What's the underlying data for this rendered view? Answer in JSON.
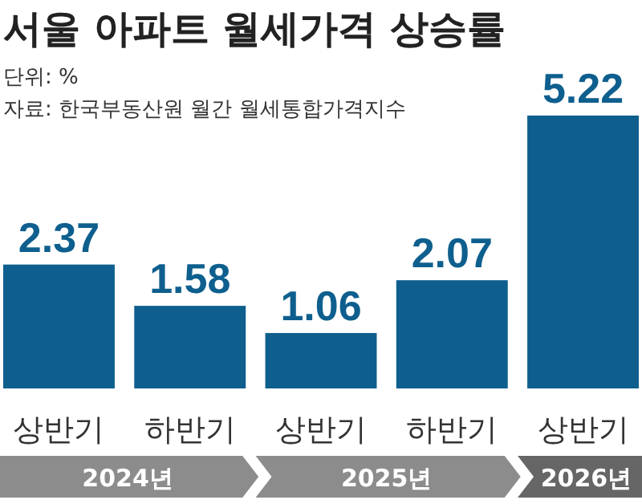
{
  "chart_data": {
    "type": "bar",
    "title": "서울 아파트 월세가격 상승률",
    "categories": [
      "상반기",
      "하반기",
      "상반기",
      "하반기",
      "상반기"
    ],
    "values": [
      2.37,
      1.58,
      1.06,
      2.07,
      5.22
    ],
    "color": "#0e5f8e",
    "data_labels": true,
    "annotations": [
      "단위: %",
      "자료: 한국부동산원 월간 월세통합가격지수",
      "2024년",
      "2025년",
      "2026년"
    ]
  }
}
